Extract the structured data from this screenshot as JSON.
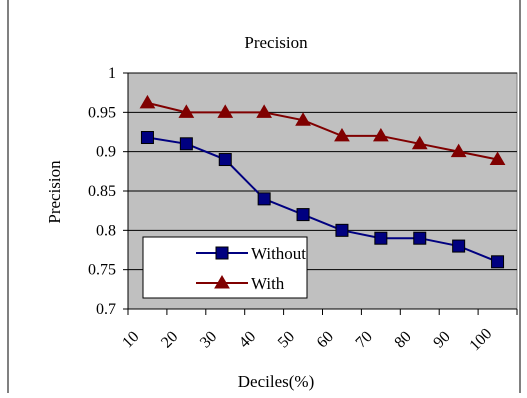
{
  "chart_data": {
    "type": "line",
    "title": "Precision",
    "xlabel": "Deciles(%)",
    "ylabel": "Precision",
    "categories": [
      "10",
      "20",
      "30",
      "40",
      "50",
      "60",
      "70",
      "80",
      "90",
      "100"
    ],
    "ylim": [
      0.7,
      1.0
    ],
    "yticks": [
      "0.7",
      "0.75",
      "0.8",
      "0.85",
      "0.9",
      "0.95",
      "1"
    ],
    "grid": true,
    "plot_background": "#c0c0c0",
    "legend_position": "bottom-left",
    "series": [
      {
        "name": "Without",
        "marker": "square",
        "color": "#000080",
        "values": [
          0.918,
          0.91,
          0.89,
          0.84,
          0.82,
          0.8,
          0.79,
          0.79,
          0.78,
          0.76
        ]
      },
      {
        "name": "With",
        "marker": "triangle",
        "color": "#800000",
        "values": [
          0.962,
          0.95,
          0.95,
          0.95,
          0.94,
          0.92,
          0.92,
          0.91,
          0.9,
          0.89
        ]
      }
    ]
  }
}
